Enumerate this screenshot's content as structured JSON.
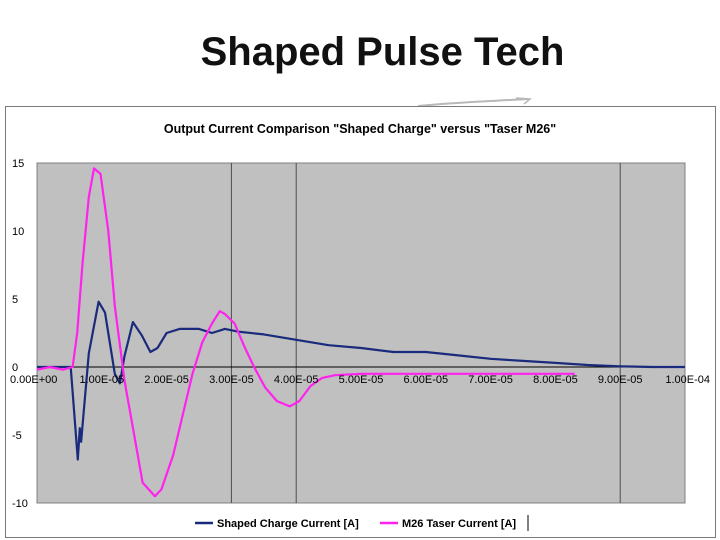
{
  "slide": {
    "title": "Shaped Pulse Tech"
  },
  "colors": {
    "shaped": "#1a2a7c",
    "taser": "#ff22ee",
    "plot_bg": "#c0c0c0",
    "grid": "#4d4d4d"
  },
  "chart_data": {
    "type": "line",
    "title": "Output Current Comparison \"Shaped Charge\" versus \"Taser M26\"",
    "xlabel": "",
    "ylabel": "",
    "xlim": [
      0,
      0.0001
    ],
    "ylim": [
      -10,
      15
    ],
    "x_ticks": [
      "0.00E+00",
      "1.00E-05",
      "2.00E-05",
      "3.00E-05",
      "4.00E-05",
      "5.00E-05",
      "6.00E-05",
      "7.00E-05",
      "8.00E-05",
      "9.00E-05",
      "1.00E-04"
    ],
    "y_ticks": [
      "15",
      "10",
      "5",
      "0",
      "-5",
      "-10"
    ],
    "grid": "partial vertical gridlines",
    "legend_position": "bottom",
    "series": [
      {
        "name": "Shaped Charge Current [A]",
        "color": "#1a2a7c",
        "points": [
          [
            0.0,
            0.0
          ],
          [
            5e-06,
            0.0
          ],
          [
            5.2e-06,
            0.0
          ],
          [
            6.3e-06,
            -6.8
          ],
          [
            6.6e-06,
            -4.5
          ],
          [
            6.8e-06,
            -5.5
          ],
          [
            8e-06,
            1.0
          ],
          [
            9.5e-06,
            4.8
          ],
          [
            1.05e-05,
            4.0
          ],
          [
            1.2e-05,
            -0.5
          ],
          [
            1.28e-05,
            -1.2
          ],
          [
            1.35e-05,
            0.8
          ],
          [
            1.48e-05,
            3.3
          ],
          [
            1.62e-05,
            2.3
          ],
          [
            1.75e-05,
            1.1
          ],
          [
            1.86e-05,
            1.4
          ],
          [
            2e-05,
            2.5
          ],
          [
            2.2e-05,
            2.8
          ],
          [
            2.5e-05,
            2.8
          ],
          [
            2.7e-05,
            2.5
          ],
          [
            2.9e-05,
            2.8
          ],
          [
            3.1e-05,
            2.6
          ],
          [
            3.5e-05,
            2.4
          ],
          [
            4e-05,
            2.0
          ],
          [
            4.5e-05,
            1.6
          ],
          [
            5e-05,
            1.4
          ],
          [
            5.5e-05,
            1.1
          ],
          [
            6e-05,
            1.1
          ],
          [
            6.5e-05,
            0.85
          ],
          [
            7e-05,
            0.6
          ],
          [
            7.5e-05,
            0.45
          ],
          [
            8e-05,
            0.3
          ],
          [
            8.5e-05,
            0.15
          ],
          [
            9e-05,
            0.05
          ],
          [
            9.5e-05,
            0.0
          ],
          [
            0.0001,
            0.0
          ]
        ]
      },
      {
        "name": "M26 Taser Current [A]",
        "color": "#ff22ee",
        "points": [
          [
            0.0,
            -0.2
          ],
          [
            2e-06,
            0.0
          ],
          [
            4e-06,
            -0.2
          ],
          [
            5.5e-06,
            0.0
          ],
          [
            6.2e-06,
            2.5
          ],
          [
            7e-06,
            7.5
          ],
          [
            8e-06,
            12.5
          ],
          [
            8.8e-06,
            14.6
          ],
          [
            9.8e-06,
            14.2
          ],
          [
            1.1e-05,
            10.0
          ],
          [
            1.2e-05,
            4.5
          ],
          [
            1.35e-05,
            -1.0
          ],
          [
            1.5e-05,
            -5.0
          ],
          [
            1.63e-05,
            -8.5
          ],
          [
            1.82e-05,
            -9.5
          ],
          [
            1.92e-05,
            -9.0
          ],
          [
            2.1e-05,
            -6.5
          ],
          [
            2.25e-05,
            -3.5
          ],
          [
            2.4e-05,
            -0.5
          ],
          [
            2.55e-05,
            1.8
          ],
          [
            2.7e-05,
            3.2
          ],
          [
            2.82e-05,
            4.1
          ],
          [
            2.9e-05,
            3.9
          ],
          [
            3.05e-05,
            3.2
          ],
          [
            3.2e-05,
            1.5
          ],
          [
            3.35e-05,
            0.0
          ],
          [
            3.52e-05,
            -1.5
          ],
          [
            3.7e-05,
            -2.5
          ],
          [
            3.9e-05,
            -2.9
          ],
          [
            4.05e-05,
            -2.5
          ],
          [
            4.22e-05,
            -1.4
          ],
          [
            4.4e-05,
            -0.8
          ],
          [
            4.6e-05,
            -0.6
          ],
          [
            5e-05,
            -0.5
          ],
          [
            5.5e-05,
            -0.5
          ],
          [
            6e-05,
            -0.5
          ],
          [
            6.5e-05,
            -0.5
          ],
          [
            7e-05,
            -0.5
          ],
          [
            7.5e-05,
            -0.5
          ],
          [
            8e-05,
            -0.5
          ],
          [
            8.3e-05,
            -0.5
          ]
        ]
      }
    ]
  }
}
